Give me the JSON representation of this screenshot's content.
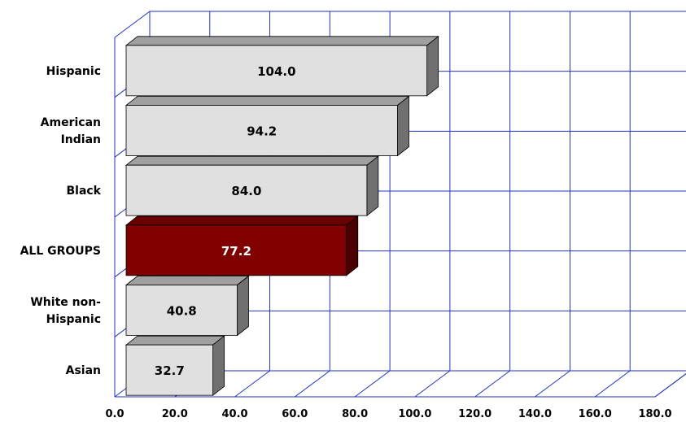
{
  "chart_data": {
    "type": "bar",
    "orientation": "horizontal",
    "three_d": true,
    "categories": [
      "Hispanic",
      "American Indian",
      "Black",
      "ALL GROUPS",
      "White non-Hispanic",
      "Asian"
    ],
    "category_label_lines": [
      [
        "Hispanic"
      ],
      [
        "American",
        "Indian"
      ],
      [
        "Black"
      ],
      [
        "ALL GROUPS"
      ],
      [
        "White non-",
        "Hispanic"
      ],
      [
        "Asian"
      ]
    ],
    "values": [
      104.0,
      94.2,
      84.0,
      77.2,
      40.8,
      32.7
    ],
    "value_labels": [
      "104.0",
      "94.2",
      "84.0",
      "77.2",
      "40.8",
      "32.7"
    ],
    "highlight_category": "ALL GROUPS",
    "xlim": [
      0,
      180
    ],
    "x_ticks": [
      0,
      20,
      40,
      60,
      80,
      100,
      120,
      140,
      160,
      180
    ],
    "x_tick_labels": [
      "0.0",
      "20.0",
      "40.0",
      "60.0",
      "80.0",
      "100.0",
      "120.0",
      "140.0",
      "160.0",
      "180.0"
    ],
    "title": "",
    "xlabel": "",
    "ylabel": "",
    "grid": true,
    "legend": "none",
    "colors": {
      "bar_face": "#e0e0e0",
      "bar_top": "#a0a0a0",
      "bar_side": "#707070",
      "highlight_face": "#800000",
      "highlight_top": "#6a0000",
      "highlight_side": "#4a0000",
      "grid": "#2233bb",
      "value_text": "#000000",
      "highlight_value_text": "#ffffff"
    }
  }
}
